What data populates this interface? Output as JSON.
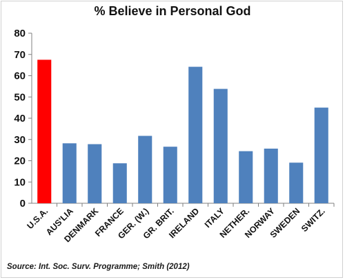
{
  "chart_data": {
    "type": "bar",
    "title": "% Believe in Personal God",
    "categories": [
      "U.S.A.",
      "AUS'LIA",
      "DENMARK",
      "FRANCE",
      "GER. (W.)",
      "GR. BRIT.",
      "IRELAND",
      "ITALY",
      "NETHER.",
      "NORWAY",
      "SWEDEN",
      "SWITZ."
    ],
    "values": [
      67.5,
      28.2,
      27.8,
      18.8,
      31.7,
      26.6,
      64.2,
      53.8,
      24.5,
      25.7,
      19.1,
      45.0
    ],
    "ylim": [
      0,
      80
    ],
    "yticks": [
      0,
      10,
      20,
      30,
      40,
      50,
      60,
      70,
      80
    ],
    "grid": false,
    "legend": "none",
    "colors": {
      "default_bar": "#4F81BD",
      "highlight_bar": "#FF0000",
      "highlight_category": "U.S.A."
    }
  },
  "source": "Source: Int. Soc. Surv. Programme; Smith (2012)"
}
